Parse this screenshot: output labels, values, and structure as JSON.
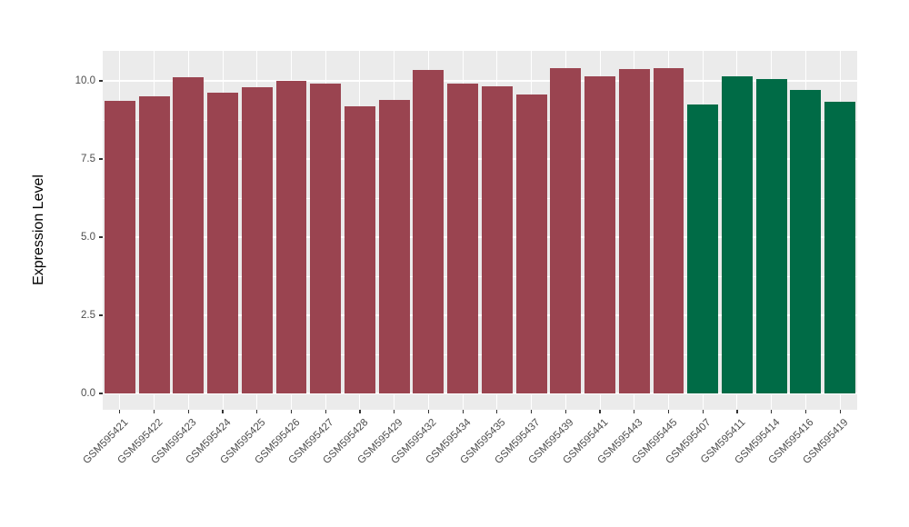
{
  "chart_data": {
    "type": "bar",
    "title": "",
    "xlabel": "",
    "ylabel": "Expression Level",
    "ylim": [
      0,
      10.95
    ],
    "yticks": [
      0.0,
      2.5,
      5.0,
      7.5,
      10.0
    ],
    "ytick_labels": [
      "0.0",
      "2.5",
      "5.0",
      "7.5",
      "10.0"
    ],
    "yticks_minor": [
      1.25,
      3.75,
      6.25,
      8.75
    ],
    "grid": "major-and-minor-white-on-grey",
    "legend_position": "none",
    "bar_width_fraction": 0.9,
    "bars": [
      {
        "label": "GSM595421",
        "value": 9.37,
        "group": "maroon"
      },
      {
        "label": "GSM595422",
        "value": 9.51,
        "group": "maroon"
      },
      {
        "label": "GSM595423",
        "value": 10.13,
        "group": "maroon"
      },
      {
        "label": "GSM595424",
        "value": 9.63,
        "group": "maroon"
      },
      {
        "label": "GSM595425",
        "value": 9.8,
        "group": "maroon"
      },
      {
        "label": "GSM595426",
        "value": 10.0,
        "group": "maroon"
      },
      {
        "label": "GSM595427",
        "value": 9.92,
        "group": "maroon"
      },
      {
        "label": "GSM595428",
        "value": 9.18,
        "group": "maroon"
      },
      {
        "label": "GSM595429",
        "value": 9.39,
        "group": "maroon"
      },
      {
        "label": "GSM595432",
        "value": 10.36,
        "group": "maroon"
      },
      {
        "label": "GSM595434",
        "value": 9.91,
        "group": "maroon"
      },
      {
        "label": "GSM595435",
        "value": 9.83,
        "group": "maroon"
      },
      {
        "label": "GSM595437",
        "value": 9.57,
        "group": "maroon"
      },
      {
        "label": "GSM595439",
        "value": 10.41,
        "group": "maroon"
      },
      {
        "label": "GSM595441",
        "value": 10.14,
        "group": "maroon"
      },
      {
        "label": "GSM595443",
        "value": 10.38,
        "group": "maroon"
      },
      {
        "label": "GSM595445",
        "value": 10.42,
        "group": "maroon"
      },
      {
        "label": "GSM595407",
        "value": 9.24,
        "group": "green"
      },
      {
        "label": "GSM595411",
        "value": 10.15,
        "group": "green"
      },
      {
        "label": "GSM595414",
        "value": 10.07,
        "group": "green"
      },
      {
        "label": "GSM595416",
        "value": 9.7,
        "group": "green"
      },
      {
        "label": "GSM595419",
        "value": 9.34,
        "group": "green"
      }
    ],
    "colors": {
      "page_bg": "#FFFFFF",
      "panel_bg": "#EBEBEB",
      "gridline": "#FFFFFF",
      "bar_maroon": "#9A4450",
      "bar_green": "#006B46",
      "axis_text": "#4D4D4D",
      "axis_title": "#000000",
      "tick_mark": "#333333"
    }
  }
}
